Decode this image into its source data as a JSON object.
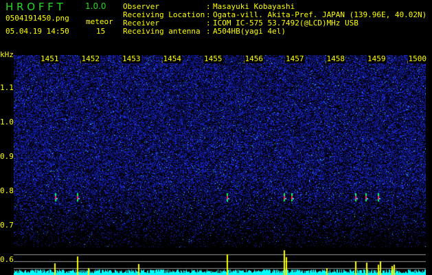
{
  "header": {
    "app_title": "H R O F F T",
    "version": "1.0.0",
    "filename": "0504191450.png",
    "datetime": "05.04.19 14:50",
    "meteor_label": "meteor",
    "meteor_count": "15"
  },
  "info": [
    {
      "label": "Observer",
      "value": "Masayuki Kobayashi"
    },
    {
      "label": "Receiving Location",
      "value": "Ogata-vill. Akita-Pref. JAPAN (139.96E, 40.02N)"
    },
    {
      "label": "Receiver",
      "value": "ICOM IC-575 53.7492(@LCD)MHz USB"
    },
    {
      "label": "Receiving antenna",
      "value": "A504HB(yagi 4el)"
    }
  ],
  "axis": {
    "unit": "kHz",
    "freq_ticks": [
      "1.1",
      "1.0",
      "0.9",
      "0.8",
      "0.7",
      "0.6"
    ],
    "time_ticks": [
      "1451",
      "1452",
      "1453",
      "1454",
      "1455",
      "1456",
      "1457",
      "1458",
      "1459",
      "1500"
    ]
  },
  "colors": {
    "background": "#000000",
    "text": "#ffff00",
    "title": "#22dd22",
    "noise": "#1a2bd0",
    "histogram": "#00ffff",
    "meteor_bar": "#ffff00"
  }
}
